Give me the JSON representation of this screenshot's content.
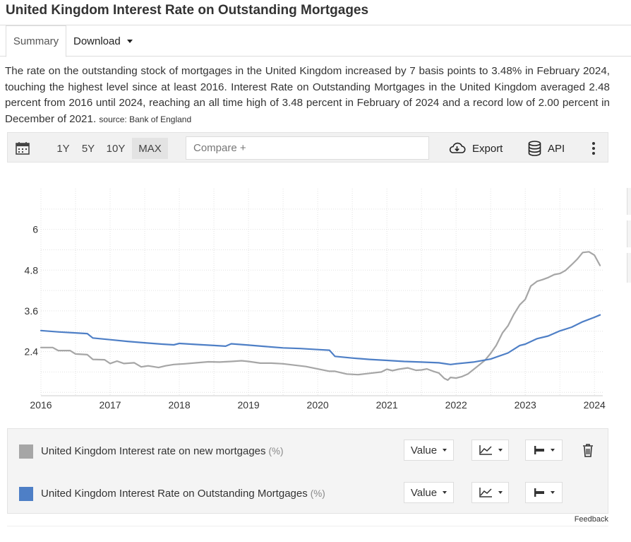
{
  "page": {
    "title": "United Kingdom Interest Rate on Outstanding Mortgages"
  },
  "tabs": {
    "summary": "Summary",
    "download": "Download"
  },
  "description": {
    "text": "The rate on the outstanding stock of mortgages in the United Kingdom increased by 7 basis points to 3.48% in February 2024, touching the highest level since at least 2016. Interest Rate on Outstanding Mortgages in the United Kingdom averaged 2.48 percent from 2016 until 2024, reaching an all time high of 3.48 percent in February of 2024 and a record low of 2.00 percent in December of 2021.",
    "source": "source: Bank of England"
  },
  "toolbar": {
    "calendar_icon": "calendar-icon",
    "ranges": [
      "1Y",
      "5Y",
      "10Y",
      "MAX"
    ],
    "active_range": "MAX",
    "compare_placeholder": "Compare +",
    "export_label": "Export",
    "api_label": "API",
    "more_icon": "vertical-ellipsis-icon"
  },
  "chart_data": {
    "type": "line",
    "title": "",
    "xlabel": "",
    "ylabel": "",
    "x_ticks": [
      "2016",
      "2017",
      "2018",
      "2019",
      "2020",
      "2021",
      "2022",
      "2023",
      "2024"
    ],
    "y_ticks": [
      "2.4",
      "3.6",
      "4.8",
      "6"
    ],
    "xlim": [
      2016.0,
      2024.12
    ],
    "ylim": [
      1.1,
      7.2
    ],
    "grid": true,
    "series": [
      {
        "name": "United Kingdom Interest rate on new mortgages",
        "color": "#a6a6a6",
        "points": [
          [
            2016.0,
            2.52
          ],
          [
            2016.17,
            2.52
          ],
          [
            2016.25,
            2.43
          ],
          [
            2016.42,
            2.43
          ],
          [
            2016.5,
            2.33
          ],
          [
            2016.67,
            2.31
          ],
          [
            2016.75,
            2.17
          ],
          [
            2016.92,
            2.16
          ],
          [
            2017.0,
            2.05
          ],
          [
            2017.1,
            2.12
          ],
          [
            2017.2,
            2.05
          ],
          [
            2017.35,
            2.07
          ],
          [
            2017.45,
            1.95
          ],
          [
            2017.55,
            1.98
          ],
          [
            2017.7,
            1.93
          ],
          [
            2017.8,
            1.98
          ],
          [
            2017.92,
            2.02
          ],
          [
            2018.08,
            2.04
          ],
          [
            2018.25,
            2.07
          ],
          [
            2018.42,
            2.1
          ],
          [
            2018.58,
            2.09
          ],
          [
            2018.75,
            2.11
          ],
          [
            2018.9,
            2.13
          ],
          [
            2019.0,
            2.11
          ],
          [
            2019.17,
            2.06
          ],
          [
            2019.33,
            2.06
          ],
          [
            2019.5,
            2.04
          ],
          [
            2019.67,
            2.0
          ],
          [
            2019.83,
            1.96
          ],
          [
            2020.0,
            1.89
          ],
          [
            2020.17,
            1.82
          ],
          [
            2020.25,
            1.82
          ],
          [
            2020.42,
            1.74
          ],
          [
            2020.58,
            1.72
          ],
          [
            2020.75,
            1.76
          ],
          [
            2020.92,
            1.8
          ],
          [
            2021.0,
            1.88
          ],
          [
            2021.08,
            1.84
          ],
          [
            2021.17,
            1.88
          ],
          [
            2021.3,
            1.92
          ],
          [
            2021.42,
            1.85
          ],
          [
            2021.5,
            1.86
          ],
          [
            2021.58,
            1.89
          ],
          [
            2021.67,
            1.82
          ],
          [
            2021.75,
            1.77
          ],
          [
            2021.83,
            1.61
          ],
          [
            2021.88,
            1.56
          ],
          [
            2021.92,
            1.64
          ],
          [
            2022.0,
            1.62
          ],
          [
            2022.08,
            1.66
          ],
          [
            2022.17,
            1.74
          ],
          [
            2022.25,
            1.87
          ],
          [
            2022.33,
            2.0
          ],
          [
            2022.42,
            2.15
          ],
          [
            2022.5,
            2.35
          ],
          [
            2022.58,
            2.58
          ],
          [
            2022.67,
            2.95
          ],
          [
            2022.75,
            3.16
          ],
          [
            2022.83,
            3.48
          ],
          [
            2022.92,
            3.78
          ],
          [
            2023.0,
            3.94
          ],
          [
            2023.08,
            4.33
          ],
          [
            2023.17,
            4.47
          ],
          [
            2023.25,
            4.52
          ],
          [
            2023.33,
            4.58
          ],
          [
            2023.42,
            4.67
          ],
          [
            2023.5,
            4.7
          ],
          [
            2023.58,
            4.79
          ],
          [
            2023.67,
            4.96
          ],
          [
            2023.75,
            5.12
          ],
          [
            2023.83,
            5.32
          ],
          [
            2023.92,
            5.34
          ],
          [
            2024.0,
            5.24
          ],
          [
            2024.08,
            4.94
          ]
        ]
      },
      {
        "name": "United Kingdom Interest Rate on Outstanding Mortgages",
        "color": "#4e7fc6",
        "points": [
          [
            2016.0,
            3.02
          ],
          [
            2016.25,
            2.98
          ],
          [
            2016.5,
            2.95
          ],
          [
            2016.67,
            2.93
          ],
          [
            2016.75,
            2.8
          ],
          [
            2017.0,
            2.75
          ],
          [
            2017.25,
            2.7
          ],
          [
            2017.5,
            2.66
          ],
          [
            2017.75,
            2.62
          ],
          [
            2017.92,
            2.6
          ],
          [
            2018.0,
            2.64
          ],
          [
            2018.25,
            2.61
          ],
          [
            2018.5,
            2.58
          ],
          [
            2018.67,
            2.56
          ],
          [
            2018.75,
            2.63
          ],
          [
            2019.0,
            2.59
          ],
          [
            2019.25,
            2.55
          ],
          [
            2019.5,
            2.51
          ],
          [
            2019.75,
            2.49
          ],
          [
            2020.0,
            2.46
          ],
          [
            2020.17,
            2.44
          ],
          [
            2020.25,
            2.26
          ],
          [
            2020.5,
            2.21
          ],
          [
            2020.75,
            2.17
          ],
          [
            2021.0,
            2.14
          ],
          [
            2021.25,
            2.11
          ],
          [
            2021.5,
            2.09
          ],
          [
            2021.75,
            2.07
          ],
          [
            2021.92,
            2.02
          ],
          [
            2022.0,
            2.04
          ],
          [
            2022.25,
            2.09
          ],
          [
            2022.5,
            2.18
          ],
          [
            2022.75,
            2.36
          ],
          [
            2022.92,
            2.58
          ],
          [
            2023.0,
            2.62
          ],
          [
            2023.17,
            2.78
          ],
          [
            2023.33,
            2.86
          ],
          [
            2023.5,
            3.01
          ],
          [
            2023.67,
            3.12
          ],
          [
            2023.83,
            3.28
          ],
          [
            2024.0,
            3.41
          ],
          [
            2024.08,
            3.48
          ]
        ]
      }
    ]
  },
  "legend": {
    "rows": [
      {
        "label": "United Kingdom Interest rate on new mortgages",
        "unit": "(%)",
        "color": "#a6a6a6",
        "value_label": "Value",
        "chart_type_icon": "line-chart-icon",
        "style_icon": "bar-style-icon",
        "delete_icon": "trash-icon"
      },
      {
        "label": "United Kingdom Interest Rate on Outstanding Mortgages",
        "unit": "(%)",
        "color": "#4e7fc6",
        "value_label": "Value",
        "chart_type_icon": "line-chart-icon",
        "style_icon": "bar-style-icon"
      }
    ]
  },
  "footer": {
    "feedback": "Feedback"
  }
}
